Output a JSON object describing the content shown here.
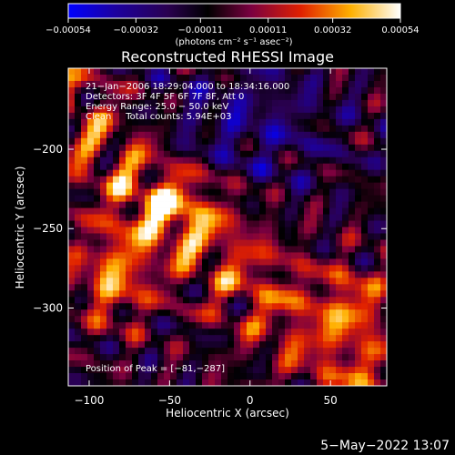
{
  "chart_data": {
    "type": "heatmap",
    "title": "Reconstructed RHESSI Image",
    "xlabel": "Heliocentric X (arcsec)",
    "ylabel": "Heliocentric Y (arcsec)",
    "xlim": [
      -113,
      85
    ],
    "ylim": [
      -349,
      -149
    ],
    "x_ticks": [
      -100,
      -50,
      0,
      50
    ],
    "x_tick_labels": [
      "−100",
      "−50",
      "0",
      "50"
    ],
    "y_ticks": [
      -200,
      -250,
      -300
    ],
    "y_tick_labels": [
      "−200",
      "−250",
      "−300"
    ],
    "colorbar": {
      "range": [
        -0.00054,
        0.00054
      ],
      "tick_values": [
        -0.00054,
        -0.00032,
        -0.00011,
        0.00011,
        0.00032,
        0.00054
      ],
      "tick_labels": [
        "−0.00054",
        "−0.00032",
        "−0.00011",
        "0.00011",
        "0.00032",
        "0.00054"
      ],
      "unit_label": "(photons cm⁻² s⁻¹ asec⁻²)",
      "colors": [
        "#0000ff",
        "#1c0084",
        "#000000",
        "#7a0080",
        "#c01800",
        "#ff8000",
        "#ffff40",
        "#ffffff"
      ]
    },
    "annotations": [
      "21−Jan−2006 18:29:04.000 to 18:34:16.000",
      "Detectors: 3F 4F 5F 6F 7F 8F, Att 0",
      "Energy Range: 25.0 − 50.0 keV",
      "Clean     Total counts: 5.94E+03"
    ],
    "peak_label": "Position of Peak = [−81,−287]",
    "peak": [
      -81,
      -287
    ]
  },
  "footer": {
    "date": "5−May−2022 13:07"
  }
}
